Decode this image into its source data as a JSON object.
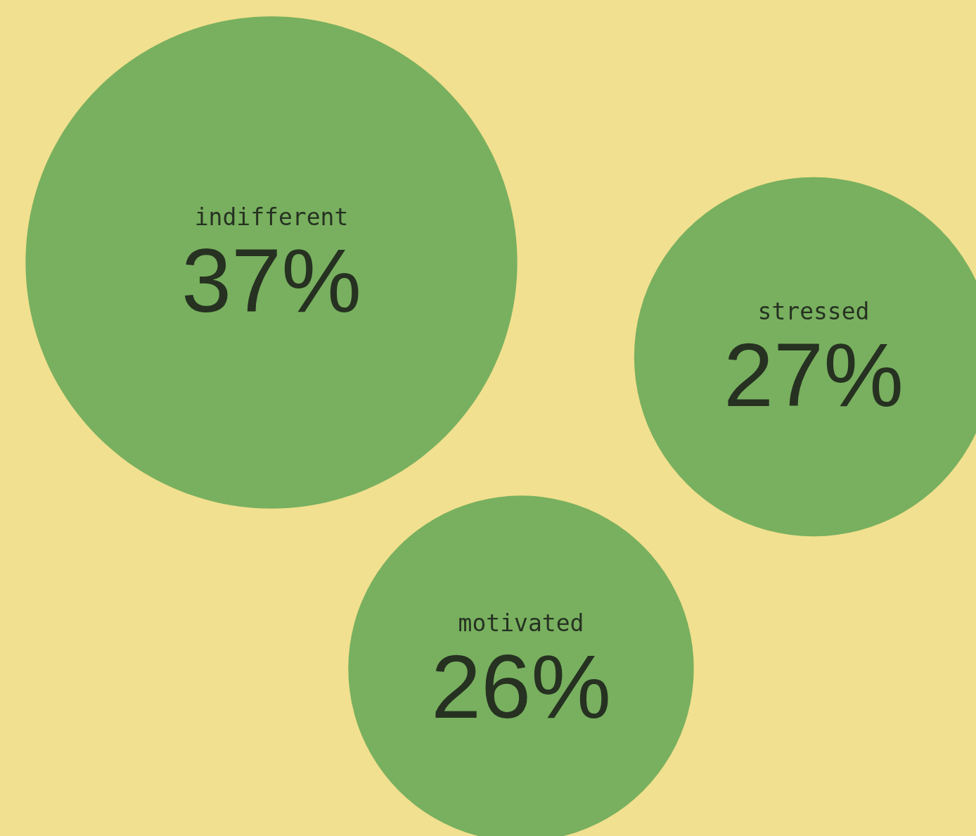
{
  "chart_data": {
    "type": "other",
    "categories": [
      "indifferent",
      "stressed",
      "motivated"
    ],
    "values": [
      37,
      27,
      26
    ],
    "value_labels": [
      "37%",
      "27%",
      "26%"
    ],
    "color": "#5aa452"
  }
}
